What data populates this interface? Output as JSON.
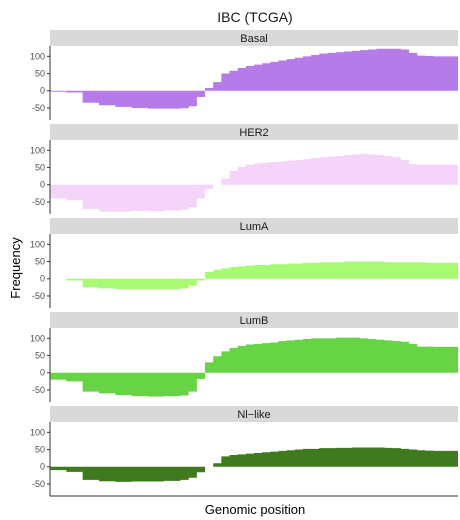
{
  "chart_data": {
    "type": "area",
    "title": "IBC (TCGA)",
    "xlabel": "Genomic position",
    "ylabel": "Frequency",
    "yticks": [
      100,
      50,
      0,
      -50
    ],
    "ylim": [
      -85,
      130
    ],
    "xlim": [
      0,
      100
    ],
    "grid": false,
    "x": [
      0,
      4,
      8,
      12,
      16,
      20,
      24,
      28,
      32,
      34,
      36,
      38,
      40,
      42,
      44,
      46,
      48,
      50,
      52,
      54,
      56,
      58,
      60,
      62,
      64,
      66,
      68,
      70,
      72,
      74,
      76,
      78,
      80,
      82,
      84,
      86,
      88,
      90,
      92,
      94,
      96,
      98,
      100
    ],
    "panels": [
      {
        "name": "Basal",
        "color": "#b57be8",
        "values": [
          -3,
          -5,
          -35,
          -42,
          -47,
          -50,
          -52,
          -52,
          -51,
          -45,
          -18,
          8,
          25,
          50,
          58,
          66,
          72,
          76,
          80,
          84,
          88,
          92,
          96,
          100,
          104,
          108,
          110,
          112,
          114,
          116,
          118,
          120,
          122,
          122,
          122,
          120,
          110,
          102,
          101,
          100,
          100,
          100,
          100
        ]
      },
      {
        "name": "HER2",
        "color": "#f4d4f8",
        "values": [
          -40,
          -45,
          -70,
          -78,
          -78,
          -76,
          -77,
          -75,
          -73,
          -65,
          -40,
          -12,
          0,
          18,
          40,
          52,
          58,
          62,
          64,
          66,
          68,
          70,
          72,
          74,
          78,
          80,
          82,
          84,
          86,
          88,
          90,
          88,
          86,
          84,
          80,
          72,
          60,
          58,
          58,
          58,
          58,
          58,
          58
        ]
      },
      {
        "name": "LumA",
        "color": "#a8fa72",
        "values": [
          0,
          -5,
          -25,
          -28,
          -30,
          -30,
          -30,
          -30,
          -28,
          -20,
          -5,
          20,
          26,
          30,
          34,
          36,
          38,
          40,
          40,
          42,
          42,
          44,
          44,
          46,
          46,
          48,
          48,
          48,
          50,
          50,
          50,
          50,
          50,
          48,
          48,
          48,
          48,
          48,
          46,
          46,
          46,
          46,
          46
        ]
      },
      {
        "name": "LumB",
        "color": "#66d444",
        "values": [
          -20,
          -25,
          -55,
          -60,
          -65,
          -68,
          -69,
          -68,
          -66,
          -55,
          -18,
          30,
          48,
          62,
          72,
          78,
          82,
          84,
          86,
          88,
          92,
          94,
          96,
          98,
          100,
          100,
          100,
          102,
          102,
          102,
          100,
          98,
          96,
          94,
          92,
          90,
          84,
          76,
          76,
          75,
          75,
          75,
          75
        ]
      },
      {
        "name": "Nl−like",
        "color": "#3f7a1e",
        "values": [
          -10,
          -15,
          -38,
          -42,
          -44,
          -43,
          -43,
          -41,
          -38,
          -32,
          -16,
          0,
          10,
          30,
          34,
          36,
          38,
          40,
          42,
          44,
          46,
          48,
          50,
          52,
          52,
          54,
          54,
          55,
          55,
          56,
          56,
          56,
          56,
          55,
          54,
          52,
          50,
          48,
          47,
          46,
          46,
          46,
          46
        ]
      }
    ]
  }
}
